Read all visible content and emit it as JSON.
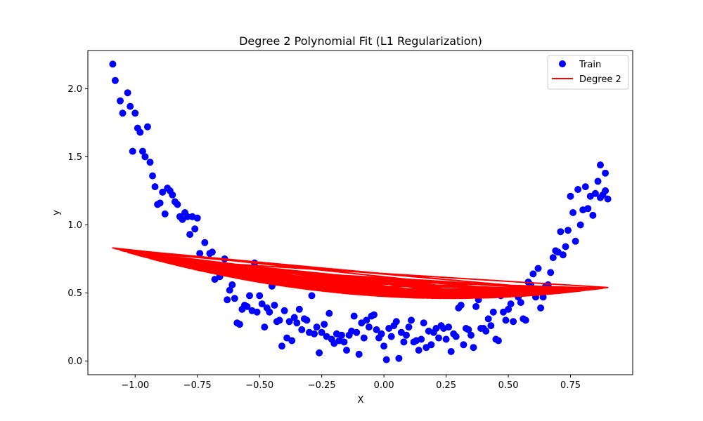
{
  "chart_data": {
    "type": "scatter",
    "title": "Degree 2 Polynomial Fit (L1 Regularization)",
    "xlabel": "X",
    "ylabel": "y",
    "xlim": [
      -1.19,
      1.0
    ],
    "ylim": [
      -0.1,
      2.28
    ],
    "xticks": [
      -1.0,
      -0.75,
      -0.5,
      -0.25,
      0.0,
      0.25,
      0.5,
      0.75
    ],
    "xtick_labels": [
      "−1.00",
      "−0.75",
      "−0.50",
      "−0.25",
      "0.00",
      "0.25",
      "0.50",
      "0.75"
    ],
    "yticks": [
      0.0,
      0.5,
      1.0,
      1.5,
      2.0
    ],
    "ytick_labels": [
      "0.0",
      "0.5",
      "1.0",
      "1.5",
      "2.0"
    ],
    "grid": false,
    "legend_position": "top-right",
    "series": [
      {
        "name": "Train",
        "kind": "scatter",
        "color": "#0000ff",
        "points": [
          [
            -1.09,
            2.18
          ],
          [
            -1.08,
            2.06
          ],
          [
            -1.06,
            1.91
          ],
          [
            -1.05,
            1.82
          ],
          [
            -1.03,
            1.97
          ],
          [
            -1.02,
            1.87
          ],
          [
            -1.01,
            1.54
          ],
          [
            -1.0,
            1.82
          ],
          [
            -0.99,
            1.71
          ],
          [
            -0.98,
            1.68
          ],
          [
            -0.97,
            1.54
          ],
          [
            -0.96,
            1.5
          ],
          [
            -0.95,
            1.72
          ],
          [
            -0.94,
            1.46
          ],
          [
            -0.93,
            1.36
          ],
          [
            -0.92,
            1.28
          ],
          [
            -0.91,
            1.15
          ],
          [
            -0.9,
            1.16
          ],
          [
            -0.89,
            1.24
          ],
          [
            -0.88,
            1.08
          ],
          [
            -0.87,
            1.27
          ],
          [
            -0.86,
            1.25
          ],
          [
            -0.85,
            1.22
          ],
          [
            -0.84,
            1.17
          ],
          [
            -0.83,
            1.15
          ],
          [
            -0.82,
            1.06
          ],
          [
            -0.81,
            1.04
          ],
          [
            -0.8,
            1.09
          ],
          [
            -0.79,
            1.06
          ],
          [
            -0.78,
            0.93
          ],
          [
            -0.77,
            1.06
          ],
          [
            -0.76,
            0.97
          ],
          [
            -0.75,
            1.05
          ],
          [
            -0.74,
            0.79
          ],
          [
            -0.72,
            0.87
          ],
          [
            -0.7,
            0.79
          ],
          [
            -0.69,
            0.8
          ],
          [
            -0.68,
            0.6
          ],
          [
            -0.66,
            0.62
          ],
          [
            -0.64,
            0.75
          ],
          [
            -0.63,
            0.45
          ],
          [
            -0.62,
            0.52
          ],
          [
            -0.61,
            0.56
          ],
          [
            -0.6,
            0.46
          ],
          [
            -0.59,
            0.28
          ],
          [
            -0.58,
            0.27
          ],
          [
            -0.57,
            0.38
          ],
          [
            -0.56,
            0.41
          ],
          [
            -0.55,
            0.4
          ],
          [
            -0.54,
            0.48
          ],
          [
            -0.53,
            0.37
          ],
          [
            -0.52,
            0.72
          ],
          [
            -0.51,
            0.36
          ],
          [
            -0.5,
            0.48
          ],
          [
            -0.49,
            0.42
          ],
          [
            -0.48,
            0.25
          ],
          [
            -0.47,
            0.39
          ],
          [
            -0.46,
            0.36
          ],
          [
            -0.45,
            0.55
          ],
          [
            -0.44,
            0.41
          ],
          [
            -0.43,
            0.29
          ],
          [
            -0.42,
            0.3
          ],
          [
            -0.41,
            0.11
          ],
          [
            -0.4,
            0.37
          ],
          [
            -0.39,
            0.17
          ],
          [
            -0.38,
            0.29
          ],
          [
            -0.37,
            0.15
          ],
          [
            -0.36,
            0.32
          ],
          [
            -0.35,
            0.28
          ],
          [
            -0.34,
            0.38
          ],
          [
            -0.33,
            0.23
          ],
          [
            -0.32,
            0.31
          ],
          [
            -0.31,
            0.3
          ],
          [
            -0.3,
            0.21
          ],
          [
            -0.29,
            0.48
          ],
          [
            -0.28,
            0.2
          ],
          [
            -0.27,
            0.25
          ],
          [
            -0.26,
            0.06
          ],
          [
            -0.25,
            0.21
          ],
          [
            -0.24,
            0.27
          ],
          [
            -0.23,
            0.18
          ],
          [
            -0.22,
            0.35
          ],
          [
            -0.21,
            0.16
          ],
          [
            -0.2,
            0.13
          ],
          [
            -0.19,
            0.2
          ],
          [
            -0.18,
            0.15
          ],
          [
            -0.17,
            0.19
          ],
          [
            -0.16,
            0.14
          ],
          [
            -0.15,
            0.08
          ],
          [
            -0.14,
            0.19
          ],
          [
            -0.13,
            0.22
          ],
          [
            -0.12,
            0.33
          ],
          [
            -0.11,
            0.21
          ],
          [
            -0.1,
            0.05
          ],
          [
            -0.09,
            0.28
          ],
          [
            -0.08,
            0.17
          ],
          [
            -0.07,
            0.3
          ],
          [
            -0.06,
            0.25
          ],
          [
            -0.05,
            0.33
          ],
          [
            -0.04,
            0.34
          ],
          [
            -0.03,
            0.23
          ],
          [
            -0.02,
            0.17
          ],
          [
            -0.01,
            0.2
          ],
          [
            0.0,
            0.11
          ],
          [
            0.01,
            0.01
          ],
          [
            0.02,
            0.24
          ],
          [
            0.03,
            0.18
          ],
          [
            0.04,
            0.26
          ],
          [
            0.05,
            0.29
          ],
          [
            0.06,
            0.02
          ],
          [
            0.07,
            0.21
          ],
          [
            0.08,
            0.14
          ],
          [
            0.09,
            0.19
          ],
          [
            0.1,
            0.25
          ],
          [
            0.11,
            0.3
          ],
          [
            0.12,
            0.14
          ],
          [
            0.13,
            0.15
          ],
          [
            0.14,
            0.08
          ],
          [
            0.15,
            0.16
          ],
          [
            0.16,
            0.28
          ],
          [
            0.17,
            0.1
          ],
          [
            0.18,
            0.22
          ],
          [
            0.19,
            0.12
          ],
          [
            0.2,
            0.21
          ],
          [
            0.21,
            0.24
          ],
          [
            0.22,
            0.17
          ],
          [
            0.23,
            0.26
          ],
          [
            0.24,
            0.24
          ],
          [
            0.25,
            0.16
          ],
          [
            0.26,
            0.25
          ],
          [
            0.27,
            0.07
          ],
          [
            0.28,
            0.2
          ],
          [
            0.29,
            0.18
          ],
          [
            0.3,
            0.39
          ],
          [
            0.31,
            0.41
          ],
          [
            0.32,
            0.12
          ],
          [
            0.33,
            0.24
          ],
          [
            0.34,
            0.23
          ],
          [
            0.35,
            0.19
          ],
          [
            0.36,
            0.1
          ],
          [
            0.37,
            0.4
          ],
          [
            0.38,
            0.45
          ],
          [
            0.39,
            0.24
          ],
          [
            0.4,
            0.24
          ],
          [
            0.41,
            0.22
          ],
          [
            0.42,
            0.31
          ],
          [
            0.43,
            0.26
          ],
          [
            0.44,
            0.36
          ],
          [
            0.45,
            0.16
          ],
          [
            0.46,
            0.15
          ],
          [
            0.47,
            0.48
          ],
          [
            0.48,
            0.36
          ],
          [
            0.49,
            0.3
          ],
          [
            0.5,
            0.38
          ],
          [
            0.51,
            0.42
          ],
          [
            0.52,
            0.29
          ],
          [
            0.53,
            0.52
          ],
          [
            0.54,
            0.47
          ],
          [
            0.55,
            0.43
          ],
          [
            0.56,
            0.31
          ],
          [
            0.57,
            0.3
          ],
          [
            0.58,
            0.58
          ],
          [
            0.59,
            0.56
          ],
          [
            0.6,
            0.64
          ],
          [
            0.61,
            0.47
          ],
          [
            0.62,
            0.68
          ],
          [
            0.63,
            0.39
          ],
          [
            0.64,
            0.47
          ],
          [
            0.65,
            0.55
          ],
          [
            0.66,
            0.56
          ],
          [
            0.67,
            0.65
          ],
          [
            0.68,
            0.76
          ],
          [
            0.69,
            0.81
          ],
          [
            0.7,
            0.8
          ],
          [
            0.71,
            0.95
          ],
          [
            0.72,
            0.78
          ],
          [
            0.73,
            0.84
          ],
          [
            0.74,
            0.96
          ],
          [
            0.75,
            1.21
          ],
          [
            0.76,
            1.09
          ],
          [
            0.77,
            0.88
          ],
          [
            0.78,
            1.26
          ],
          [
            0.79,
            1.0
          ],
          [
            0.8,
            1.11
          ],
          [
            0.81,
            1.28
          ],
          [
            0.82,
            1.12
          ],
          [
            0.83,
            1.21
          ],
          [
            0.84,
            1.07
          ],
          [
            0.85,
            1.23
          ],
          [
            0.86,
            1.32
          ],
          [
            0.87,
            1.2
          ],
          [
            0.87,
            1.44
          ],
          [
            0.88,
            1.22
          ],
          [
            0.89,
            1.38
          ],
          [
            0.89,
            1.25
          ],
          [
            0.9,
            1.19
          ]
        ]
      },
      {
        "name": "Degree 2",
        "kind": "line",
        "color": "#ff0000",
        "coefficients": [
          0.475,
          -0.108,
          0.2
        ]
      }
    ]
  }
}
